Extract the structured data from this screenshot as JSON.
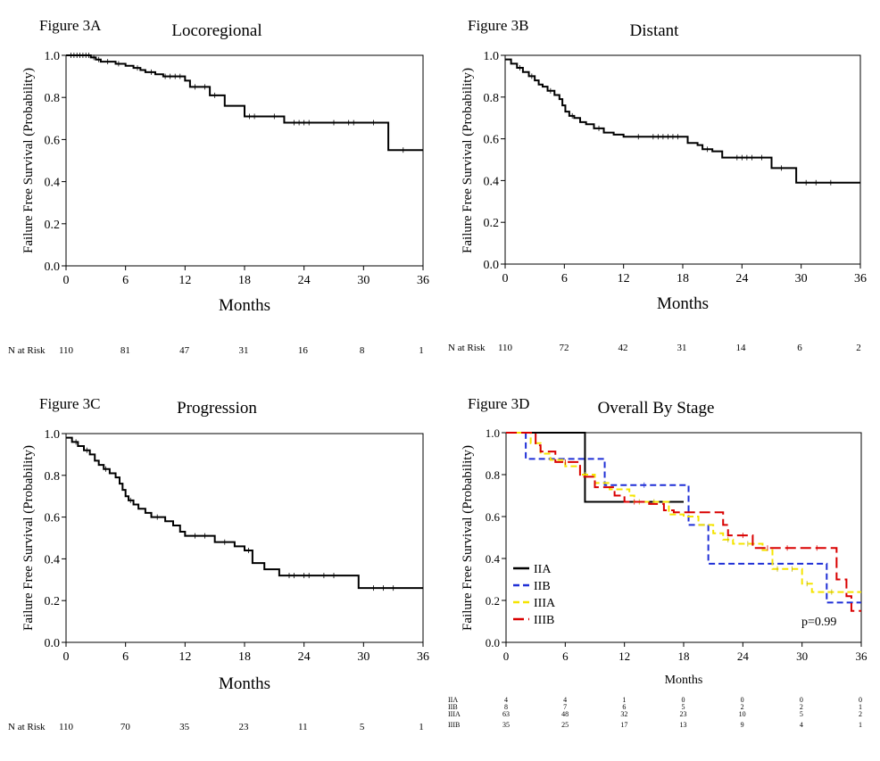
{
  "panels": [
    {
      "figure_label": "Figure 3A",
      "chart_data": {
        "type": "line",
        "title": "Locoregional",
        "xlabel": "Months",
        "ylabel": "Failure Free Survival (Probability)",
        "xlim": [
          0,
          36
        ],
        "ylim": [
          0,
          1.0
        ],
        "x_ticks": [
          "0",
          "6",
          "12",
          "18",
          "24",
          "30",
          "36"
        ],
        "y_ticks": [
          "0.0",
          "0.2",
          "0.4",
          "0.6",
          "0.8",
          "1.0"
        ],
        "series": [
          {
            "color": "#000000",
            "dash": "solid",
            "steps": [
              [
                0,
                1.0
              ],
              [
                2.5,
                0.99
              ],
              [
                3.0,
                0.98
              ],
              [
                3.5,
                0.97
              ],
              [
                5.0,
                0.96
              ],
              [
                6.0,
                0.95
              ],
              [
                6.8,
                0.94
              ],
              [
                7.5,
                0.93
              ],
              [
                8.0,
                0.92
              ],
              [
                9.0,
                0.91
              ],
              [
                9.8,
                0.9
              ],
              [
                12.0,
                0.88
              ],
              [
                12.5,
                0.85
              ],
              [
                14.5,
                0.81
              ],
              [
                16.0,
                0.76
              ],
              [
                18.0,
                0.71
              ],
              [
                22.0,
                0.68
              ],
              [
                32.5,
                0.55
              ],
              [
                36,
                0.55
              ]
            ],
            "censor": [
              0.5,
              0.8,
              1.1,
              1.4,
              1.7,
              2.0,
              2.3,
              2.8,
              3.3,
              4.2,
              5.3,
              7.2,
              8.6,
              10.0,
              10.5,
              11.0,
              11.5,
              13.0,
              14.0,
              15.0,
              18.5,
              19.0,
              21.0,
              23.0,
              23.5,
              24.0,
              24.5,
              27.0,
              28.5,
              29.0,
              31.0,
              34.0
            ]
          }
        ]
      },
      "risk": {
        "label": "N at Risk",
        "rows": [
          {
            "name": "",
            "values": [
              "110",
              "81",
              "47",
              "31",
              "16",
              "8",
              "1"
            ]
          }
        ]
      }
    },
    {
      "figure_label": "Figure 3B",
      "chart_data": {
        "type": "line",
        "title": "Distant",
        "xlabel": "Months",
        "ylabel": "Failure Free Survival (Probability)",
        "xlim": [
          0,
          36
        ],
        "ylim": [
          0,
          1.0
        ],
        "x_ticks": [
          "0",
          "6",
          "12",
          "18",
          "24",
          "30",
          "36"
        ],
        "y_ticks": [
          "0.0",
          "0.2",
          "0.4",
          "0.6",
          "0.8",
          "1.0"
        ],
        "series": [
          {
            "color": "#000000",
            "dash": "solid",
            "steps": [
              [
                0,
                0.98
              ],
              [
                0.6,
                0.96
              ],
              [
                1.2,
                0.94
              ],
              [
                1.8,
                0.92
              ],
              [
                2.4,
                0.9
              ],
              [
                3.0,
                0.88
              ],
              [
                3.4,
                0.86
              ],
              [
                3.8,
                0.85
              ],
              [
                4.3,
                0.83
              ],
              [
                5.0,
                0.81
              ],
              [
                5.5,
                0.79
              ],
              [
                5.8,
                0.76
              ],
              [
                6.1,
                0.73
              ],
              [
                6.5,
                0.71
              ],
              [
                7.0,
                0.7
              ],
              [
                7.6,
                0.68
              ],
              [
                8.2,
                0.67
              ],
              [
                9.0,
                0.65
              ],
              [
                10.0,
                0.63
              ],
              [
                11.0,
                0.62
              ],
              [
                12.0,
                0.61
              ],
              [
                18.5,
                0.58
              ],
              [
                19.5,
                0.57
              ],
              [
                20.0,
                0.55
              ],
              [
                21.0,
                0.54
              ],
              [
                22.0,
                0.51
              ],
              [
                27.0,
                0.46
              ],
              [
                29.5,
                0.39
              ],
              [
                36,
                0.39
              ]
            ],
            "censor": [
              1.5,
              2.7,
              4.6,
              6.8,
              9.5,
              13.5,
              15.0,
              15.5,
              16.0,
              16.5,
              17.0,
              17.5,
              20.5,
              23.5,
              24.0,
              24.5,
              25.0,
              26.0,
              28.0,
              30.5,
              31.5,
              33.0
            ]
          }
        ]
      },
      "risk": {
        "label": "N at Risk",
        "rows": [
          {
            "name": "",
            "values": [
              "110",
              "72",
              "42",
              "31",
              "14",
              "6",
              "2"
            ]
          }
        ]
      }
    },
    {
      "figure_label": "Figure 3C",
      "chart_data": {
        "type": "line",
        "title": "Progression",
        "xlabel": "Months",
        "ylabel": "Failure Free Survival (Probability)",
        "xlim": [
          0,
          36
        ],
        "ylim": [
          0,
          1.0
        ],
        "x_ticks": [
          "0",
          "6",
          "12",
          "18",
          "24",
          "30",
          "36"
        ],
        "y_ticks": [
          "0.0",
          "0.2",
          "0.4",
          "0.6",
          "0.8",
          "1.0"
        ],
        "series": [
          {
            "color": "#000000",
            "dash": "solid",
            "steps": [
              [
                0,
                0.98
              ],
              [
                0.6,
                0.96
              ],
              [
                1.2,
                0.94
              ],
              [
                1.8,
                0.92
              ],
              [
                2.4,
                0.9
              ],
              [
                2.9,
                0.87
              ],
              [
                3.3,
                0.85
              ],
              [
                3.8,
                0.83
              ],
              [
                4.4,
                0.81
              ],
              [
                5.0,
                0.79
              ],
              [
                5.4,
                0.76
              ],
              [
                5.7,
                0.73
              ],
              [
                6.0,
                0.7
              ],
              [
                6.3,
                0.68
              ],
              [
                6.8,
                0.66
              ],
              [
                7.3,
                0.64
              ],
              [
                8.0,
                0.62
              ],
              [
                8.6,
                0.6
              ],
              [
                10.0,
                0.58
              ],
              [
                10.8,
                0.56
              ],
              [
                11.5,
                0.53
              ],
              [
                12.0,
                0.51
              ],
              [
                15.0,
                0.48
              ],
              [
                17.0,
                0.46
              ],
              [
                18.0,
                0.44
              ],
              [
                18.8,
                0.38
              ],
              [
                20.0,
                0.35
              ],
              [
                21.5,
                0.32
              ],
              [
                29.5,
                0.26
              ],
              [
                36,
                0.26
              ]
            ],
            "censor": [
              1.0,
              2.1,
              4.0,
              6.5,
              9.2,
              13.0,
              14.0,
              16.0,
              18.4,
              22.5,
              23.0,
              24.0,
              24.5,
              26.0,
              27.0,
              31.0,
              32.0,
              33.0
            ]
          }
        ]
      },
      "risk": {
        "label": "N at Risk",
        "rows": [
          {
            "name": "",
            "values": [
              "110",
              "70",
              "35",
              "23",
              "11",
              "5",
              "1"
            ]
          }
        ]
      }
    },
    {
      "figure_label": "Figure 3D",
      "chart_data": {
        "type": "line",
        "title": "Overall By Stage",
        "xlabel": "Months",
        "ylabel": "Failure Free Survival (Probability)",
        "xlim": [
          0,
          36
        ],
        "ylim": [
          0,
          1.0
        ],
        "x_ticks": [
          "0",
          "6",
          "12",
          "18",
          "24",
          "30",
          "36"
        ],
        "y_ticks": [
          "0.0",
          "0.2",
          "0.4",
          "0.6",
          "0.8",
          "1.0"
        ],
        "annotation": "p=0.99",
        "legend_position": "bottom-left",
        "series": [
          {
            "name": "IIA",
            "color": "#000000",
            "dash": "solid",
            "steps": [
              [
                0,
                1.0
              ],
              [
                8.0,
                0.67
              ],
              [
                18.0,
                0.67
              ]
            ],
            "censor": []
          },
          {
            "name": "IIB",
            "color": "#1f2fd6",
            "dash": "dashed",
            "steps": [
              [
                0,
                1.0
              ],
              [
                2.0,
                0.875
              ],
              [
                10.0,
                0.75
              ],
              [
                18.5,
                0.56
              ],
              [
                20.5,
                0.375
              ],
              [
                32.5,
                0.19
              ],
              [
                36,
                0.19
              ]
            ],
            "censor": [
              14.0
            ]
          },
          {
            "name": "IIIA",
            "color": "#f5e400",
            "dash": "dashed",
            "steps": [
              [
                0,
                1.0
              ],
              [
                2.5,
                0.95
              ],
              [
                3.5,
                0.9
              ],
              [
                4.5,
                0.87
              ],
              [
                6.0,
                0.84
              ],
              [
                7.5,
                0.8
              ],
              [
                9.0,
                0.76
              ],
              [
                10.5,
                0.73
              ],
              [
                12.5,
                0.7
              ],
              [
                13.0,
                0.67
              ],
              [
                16.5,
                0.61
              ],
              [
                18.0,
                0.6
              ],
              [
                19.5,
                0.56
              ],
              [
                21.0,
                0.52
              ],
              [
                22.0,
                0.49
              ],
              [
                23.0,
                0.47
              ],
              [
                26.0,
                0.44
              ],
              [
                27.0,
                0.35
              ],
              [
                30.0,
                0.28
              ],
              [
                31.0,
                0.24
              ],
              [
                36,
                0.24
              ]
            ],
            "censor": [
              8.0,
              13.5,
              15.0,
              22.5,
              24.5,
              27.5,
              29.0,
              30.5,
              33.0
            ]
          },
          {
            "name": "IIIB",
            "color": "#d90000",
            "dash": "longdash",
            "steps": [
              [
                0,
                1.0
              ],
              [
                3.0,
                0.94
              ],
              [
                3.5,
                0.91
              ],
              [
                5.0,
                0.86
              ],
              [
                7.5,
                0.79
              ],
              [
                9.0,
                0.74
              ],
              [
                11.0,
                0.7
              ],
              [
                12.0,
                0.67
              ],
              [
                14.5,
                0.66
              ],
              [
                16.0,
                0.63
              ],
              [
                17.0,
                0.62
              ],
              [
                22.0,
                0.56
              ],
              [
                22.5,
                0.51
              ],
              [
                25.0,
                0.45
              ],
              [
                33.5,
                0.3
              ],
              [
                34.5,
                0.22
              ],
              [
                35.0,
                0.15
              ],
              [
                36,
                0.15
              ]
            ],
            "censor": [
              6.0,
              13.0,
              24.0,
              26.5,
              28.5,
              31.5
            ]
          }
        ]
      },
      "risk": {
        "label": "",
        "rows": [
          {
            "name": "IIA",
            "values": [
              "4",
              "4",
              "1",
              "0",
              "0",
              "0",
              "0"
            ]
          },
          {
            "name": "IIB",
            "values": [
              "8",
              "7",
              "6",
              "5",
              "2",
              "2",
              "1"
            ]
          },
          {
            "name": "IIIA",
            "values": [
              "63",
              "48",
              "32",
              "23",
              "10",
              "5",
              "2"
            ]
          },
          {
            "name": "IIIB",
            "values": [
              "35",
              "25",
              "17",
              "13",
              "9",
              "4",
              "1"
            ]
          }
        ]
      }
    }
  ]
}
